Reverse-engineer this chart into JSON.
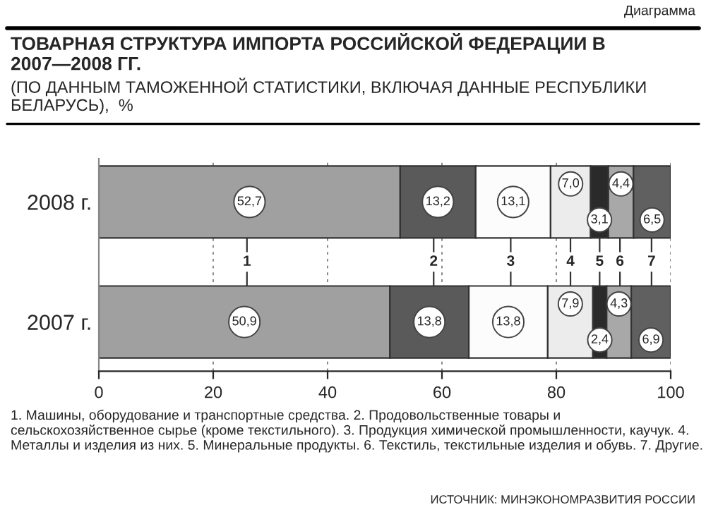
{
  "chart_data": {
    "type": "bar",
    "orientation": "horizontal",
    "stacked": true,
    "title": "ТОВАРНАЯ СТРУКТУРА ИМПОРТА РОССИЙСКОЙ ФЕДЕРАЦИИ В 2007—2008 ГГ.",
    "subtitle": "(ПО ДАННЫМ ТАМОЖЕННОЙ СТАТИСТИКИ, ВКЛЮЧАЯ ДАННЫЕ РЕСПУБЛИКИ БЕЛАРУСЬ),  %",
    "categories": [
      "2008 г.",
      "2007 г."
    ],
    "series": [
      {
        "name": "1",
        "color": "#a0a0a0",
        "values": [
          52.7,
          50.9
        ],
        "value_labels": [
          "52,7",
          "50,9"
        ]
      },
      {
        "name": "2",
        "color": "#5a5a5a",
        "values": [
          13.2,
          13.8
        ],
        "value_labels": [
          "13,2",
          "13,8"
        ]
      },
      {
        "name": "3",
        "color": "#fcfcfc",
        "values": [
          13.1,
          13.8
        ],
        "value_labels": [
          "13,1",
          "13,8"
        ]
      },
      {
        "name": "4",
        "color": "#ececec",
        "values": [
          7.0,
          7.9
        ],
        "value_labels": [
          "7,0",
          "7,9"
        ]
      },
      {
        "name": "5",
        "color": "#2a2a2a",
        "values": [
          3.1,
          2.4
        ],
        "value_labels": [
          "3,1",
          "2,4"
        ]
      },
      {
        "name": "6",
        "color": "#a8a8a8",
        "values": [
          4.4,
          4.3
        ],
        "value_labels": [
          "4,4",
          "4,3"
        ]
      },
      {
        "name": "7",
        "color": "#606060",
        "values": [
          6.5,
          6.9
        ],
        "value_labels": [
          "6,5",
          "6,9"
        ]
      }
    ],
    "xlim": [
      0,
      100
    ],
    "xticks": [
      0,
      20,
      40,
      60,
      80,
      100
    ],
    "grid": "x",
    "legend": "center",
    "annotations": [
      "Диаграмма",
      "1. Машины, оборудование и транспортные средства. 2. Продовольственные товары и сельскохозяйственное сырье (кроме текстильного). 3. Продукция химической промышленности, каучук. 4. Металлы и изделия из них. 5. Минеральные продукты. 6. Текстиль, текстильные изделия и обувь. 7. Другие.",
      "ИСТОЧНИК: МИНЭКОНОМРАЗВИТИЯ РОССИИ"
    ]
  }
}
